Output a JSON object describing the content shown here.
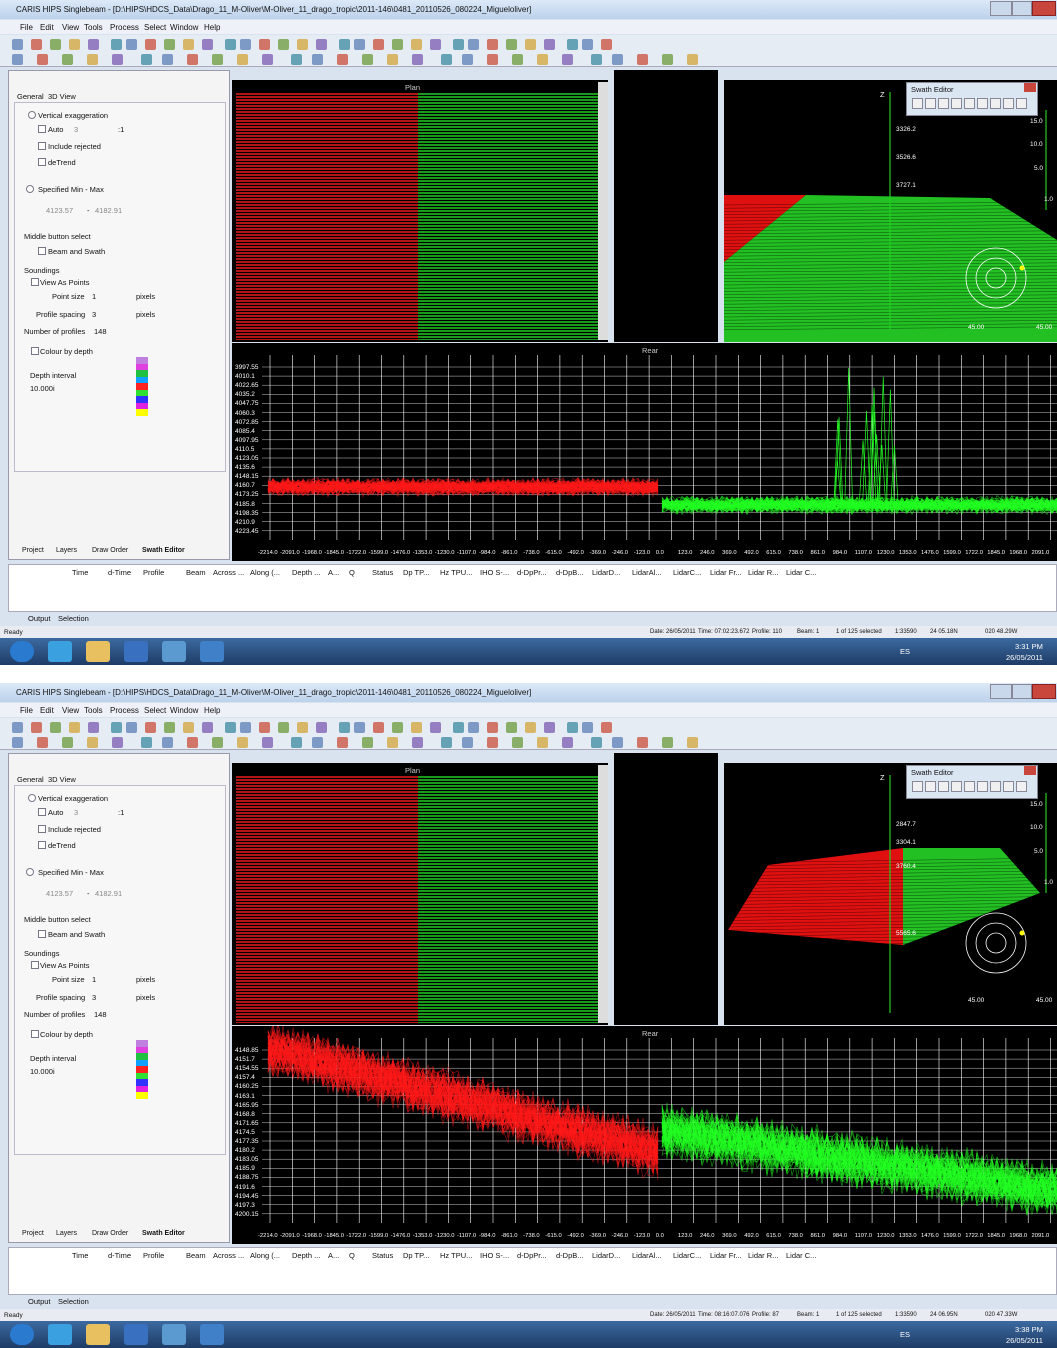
{
  "shared": {
    "title": "CARIS HIPS Singlebeam - [D:\\HIPS\\HDCS_Data\\Drago_11_M-Oliver\\M-Oliver_11_drago_tropic\\2011-146\\0481_20110526_080224_Migueloliver]",
    "menu": [
      "File",
      "Edit",
      "View",
      "Tools",
      "Process",
      "Select",
      "Window",
      "Help"
    ],
    "panel": {
      "tab_general": "General",
      "tab_3d": "3D View",
      "vertical_exaggeration": "Vertical exaggeration",
      "auto": "Auto",
      "auto_value": "3",
      "ratio": ":1",
      "include_rejected": "Include rejected",
      "detrend": "deTrend",
      "specified": "Specified Min - Max",
      "min": "4123.57",
      "dash": "-",
      "max": "4182.91",
      "middle_button": "Middle button select",
      "beam_swath": "Beam and Swath",
      "soundings": "Soundings",
      "view_points": "View As Points",
      "point_size": "Point size",
      "point_size_value": "1",
      "point_size_unit": "pixels",
      "profile_spacing": "Profile spacing",
      "profile_spacing_value": "3",
      "profile_spacing_unit": "pixels",
      "num_profiles": "Number of profiles",
      "num_profiles_value": "148",
      "colour_by_depth": "Colour by depth",
      "depth_interval": "Depth interval",
      "depth_interval_value": "10.000i"
    },
    "bottom_tabs": [
      "Project",
      "Layers",
      "Draw Order",
      "Swath Editor"
    ],
    "plan_label": "Plan",
    "rear_label": "Rear",
    "rear_xticks": [
      "-2214.0",
      "-2091.0",
      "-1968.0",
      "-1845.0",
      "-1722.0",
      "-1599.0",
      "-1476.0",
      "-1353.0",
      "-1230.0",
      "-1107.0",
      "-984.0",
      "-861.0",
      "-738.0",
      "-615.0",
      "-492.0",
      "-369.0",
      "-246.0",
      "-123.0",
      "0.0",
      "123.0",
      "246.0",
      "369.0",
      "492.0",
      "615.0",
      "738.0",
      "861.0",
      "984.0",
      "1107.0",
      "1230.0",
      "1353.0",
      "1476.0",
      "1599.0",
      "1722.0",
      "1845.0",
      "1968.0",
      "2091.0"
    ],
    "swath_title": "Swath Editor",
    "z": "Z",
    "scale": [
      "15.0",
      "10.0",
      "5.0",
      "1.0"
    ],
    "angles": [
      "45.00",
      "45.00"
    ],
    "columns": [
      "Time",
      "d-Time",
      "Profile",
      "Beam",
      "Across ...",
      "Along (...",
      "Depth ...",
      "A...",
      "Q",
      "Status",
      "Dp TP...",
      "Hz TPU...",
      "IHO S-...",
      "d-DpPr...",
      "d-DpB...",
      "LidarD...",
      "LidarAl...",
      "LidarC...",
      "Lidar Fr...",
      "Lidar R...",
      "Lidar C..."
    ],
    "output_tabs": [
      "Output",
      "Selection"
    ],
    "status": {
      "ready": "Ready",
      "date": "Date: 26/05/2011",
      "beam": "Beam: 1",
      "selected": "1 of 125 selected",
      "scale": "1:33590"
    },
    "taskbar": {
      "lang": "ES",
      "date": "26/05/2011"
    }
  },
  "screens": [
    {
      "time": "Time: 07:02:23.672",
      "profile": "Profile: 110",
      "lat": "24 05.18N",
      "lon": "020 48.29W",
      "clock": "3:31 PM",
      "depths": [
        "3326.2",
        "3526.6",
        "3727.1"
      ],
      "rear_yticks": [
        "3997.55",
        "4010.1",
        "4022.65",
        "4035.2",
        "4047.75",
        "4060.3",
        "4072.85",
        "4085.4",
        "4097.95",
        "4110.5",
        "4123.05",
        "4135.6",
        "4148.15",
        "4160.7",
        "4173.25",
        "4185.8",
        "4198.35",
        "4210.9",
        "4223.45"
      ]
    },
    {
      "time": "Time: 08:16:07.076",
      "profile": "Profile: 87",
      "lat": "24 06.95N",
      "lon": "020 47.33W",
      "clock": "3:38 PM",
      "depths": [
        "2847.7",
        "3304.1",
        "3760.4",
        "5565.6"
      ],
      "rear_yticks": [
        "4148.85",
        "4151.7",
        "4154.55",
        "4157.4",
        "4160.25",
        "4163.1",
        "4165.95",
        "4168.8",
        "4171.65",
        "4174.5",
        "4177.35",
        "4180.2",
        "4183.05",
        "4185.9",
        "4188.75",
        "4191.6",
        "4194.45",
        "4197.3",
        "4200.15"
      ]
    }
  ]
}
